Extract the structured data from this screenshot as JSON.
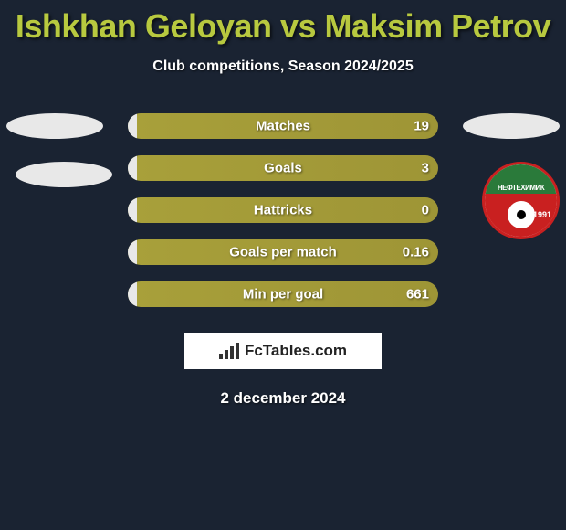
{
  "header": {
    "title": "Ishkhan Geloyan vs Maksim Petrov",
    "subtitle": "Club competitions, Season 2024/2025"
  },
  "colors": {
    "background": "#1a2332",
    "title_color": "#b8c93f",
    "bar_fill": "#a8a03a",
    "bar_empty": "#e8e8e8",
    "text": "#ffffff"
  },
  "stats": [
    {
      "label": "Matches",
      "left_value": "",
      "right_value": "19",
      "left_pct": 3
    },
    {
      "label": "Goals",
      "left_value": "",
      "right_value": "3",
      "left_pct": 3
    },
    {
      "label": "Hattricks",
      "left_value": "",
      "right_value": "0",
      "left_pct": 3
    },
    {
      "label": "Goals per match",
      "left_value": "",
      "right_value": "0.16",
      "left_pct": 3
    },
    {
      "label": "Min per goal",
      "left_value": "",
      "right_value": "661",
      "left_pct": 3
    }
  ],
  "side_decorations": {
    "left_ellipses": 2,
    "right_ellipses": 1,
    "club_badge": {
      "text": "НЕФТЕХИМИК",
      "year": "1991",
      "colors": {
        "ring": "#c92020",
        "top": "#2a7a3a",
        "mid": "#c92020"
      }
    }
  },
  "watermark": {
    "text": "FcTables.com"
  },
  "footer": {
    "date": "2 december 2024"
  }
}
